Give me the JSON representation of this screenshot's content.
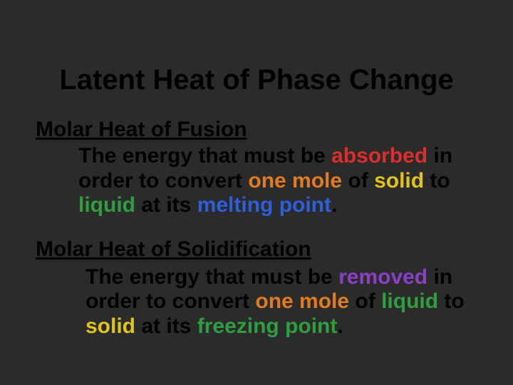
{
  "colors": {
    "background": "#2b2b2b",
    "text_default": "#000000",
    "absorbed": "#dc2e2e",
    "one_mole": "#e07b1f",
    "solid": "#e0c518",
    "liquid": "#2f9e3f",
    "melting_point": "#2e5fd8",
    "removed": "#8a3fc4",
    "freezing_point": "#2f9e3f"
  },
  "typography": {
    "font_family": "Comic Sans MS",
    "title_fontsize_pt": 30,
    "heading_fontsize_pt": 22,
    "body_fontsize_pt": 22,
    "weight": "bold"
  },
  "title": "Latent Heat of Phase Change",
  "section1": {
    "heading": "Molar Heat of Fusion",
    "t1": "The energy that must be ",
    "absorbed": "absorbed",
    "t2": " in order to convert ",
    "one_mole": "one mole",
    "t3": " of ",
    "solid": "solid",
    "t4": " to ",
    "liquid": "liquid",
    "t5": " at its ",
    "melting_point": "melting point",
    "t6": "."
  },
  "section2": {
    "heading": "Molar Heat of Solidification",
    "t1": "The energy that must be ",
    "removed": "removed",
    "t2": " in order to convert ",
    "one_mole": "one mole",
    "t3": " of ",
    "liquid": "liquid",
    "t4": " to ",
    "solid": "solid",
    "t5": " at its ",
    "freezing_point": "freezing point",
    "t6": "."
  }
}
